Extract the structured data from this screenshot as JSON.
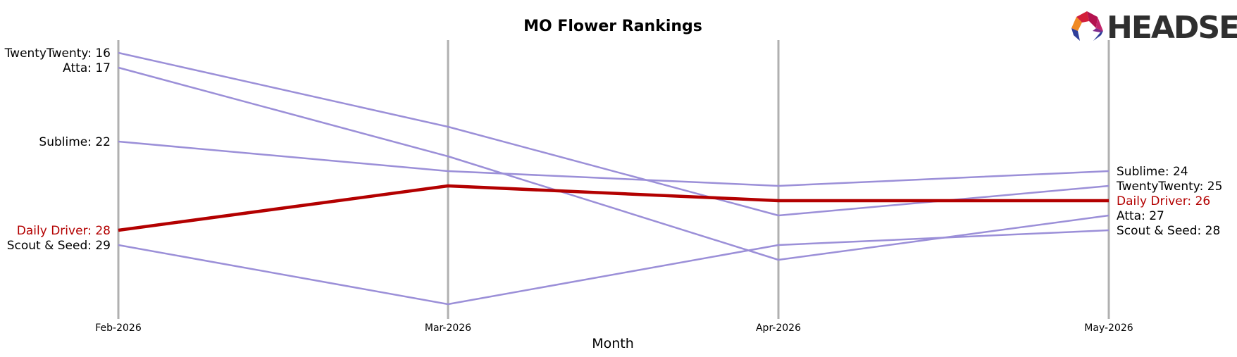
{
  "chart_data": {
    "type": "line",
    "title": "MO Flower Rankings",
    "xlabel": "Month",
    "ylabel": "",
    "categories": [
      "Feb-2026",
      "Mar-2026",
      "Apr-2026",
      "May-2026"
    ],
    "y_inverted": true,
    "ylim": [
      12,
      33
    ],
    "grid": "vertical lines at each month",
    "series": [
      {
        "name": "TwentyTwenty",
        "values": [
          16,
          21,
          27,
          25
        ],
        "color": "#9b8fd8",
        "highlight": false
      },
      {
        "name": "Atta",
        "values": [
          17,
          23,
          30,
          27
        ],
        "color": "#9b8fd8",
        "highlight": false
      },
      {
        "name": "Sublime",
        "values": [
          22,
          24,
          25,
          24
        ],
        "color": "#9b8fd8",
        "highlight": false
      },
      {
        "name": "Scout & Seed",
        "values": [
          29,
          33,
          29,
          28
        ],
        "color": "#9b8fd8",
        "highlight": false
      },
      {
        "name": "Daily Driver",
        "values": [
          28,
          25,
          26,
          26
        ],
        "color": "#b30000",
        "highlight": true
      }
    ]
  },
  "logo": {
    "text": "HEADSET",
    "icon": "headset-logo-icon"
  },
  "colors": {
    "gridline": "#b0b0b0",
    "label_default": "#000000",
    "highlight": "#b30000"
  }
}
